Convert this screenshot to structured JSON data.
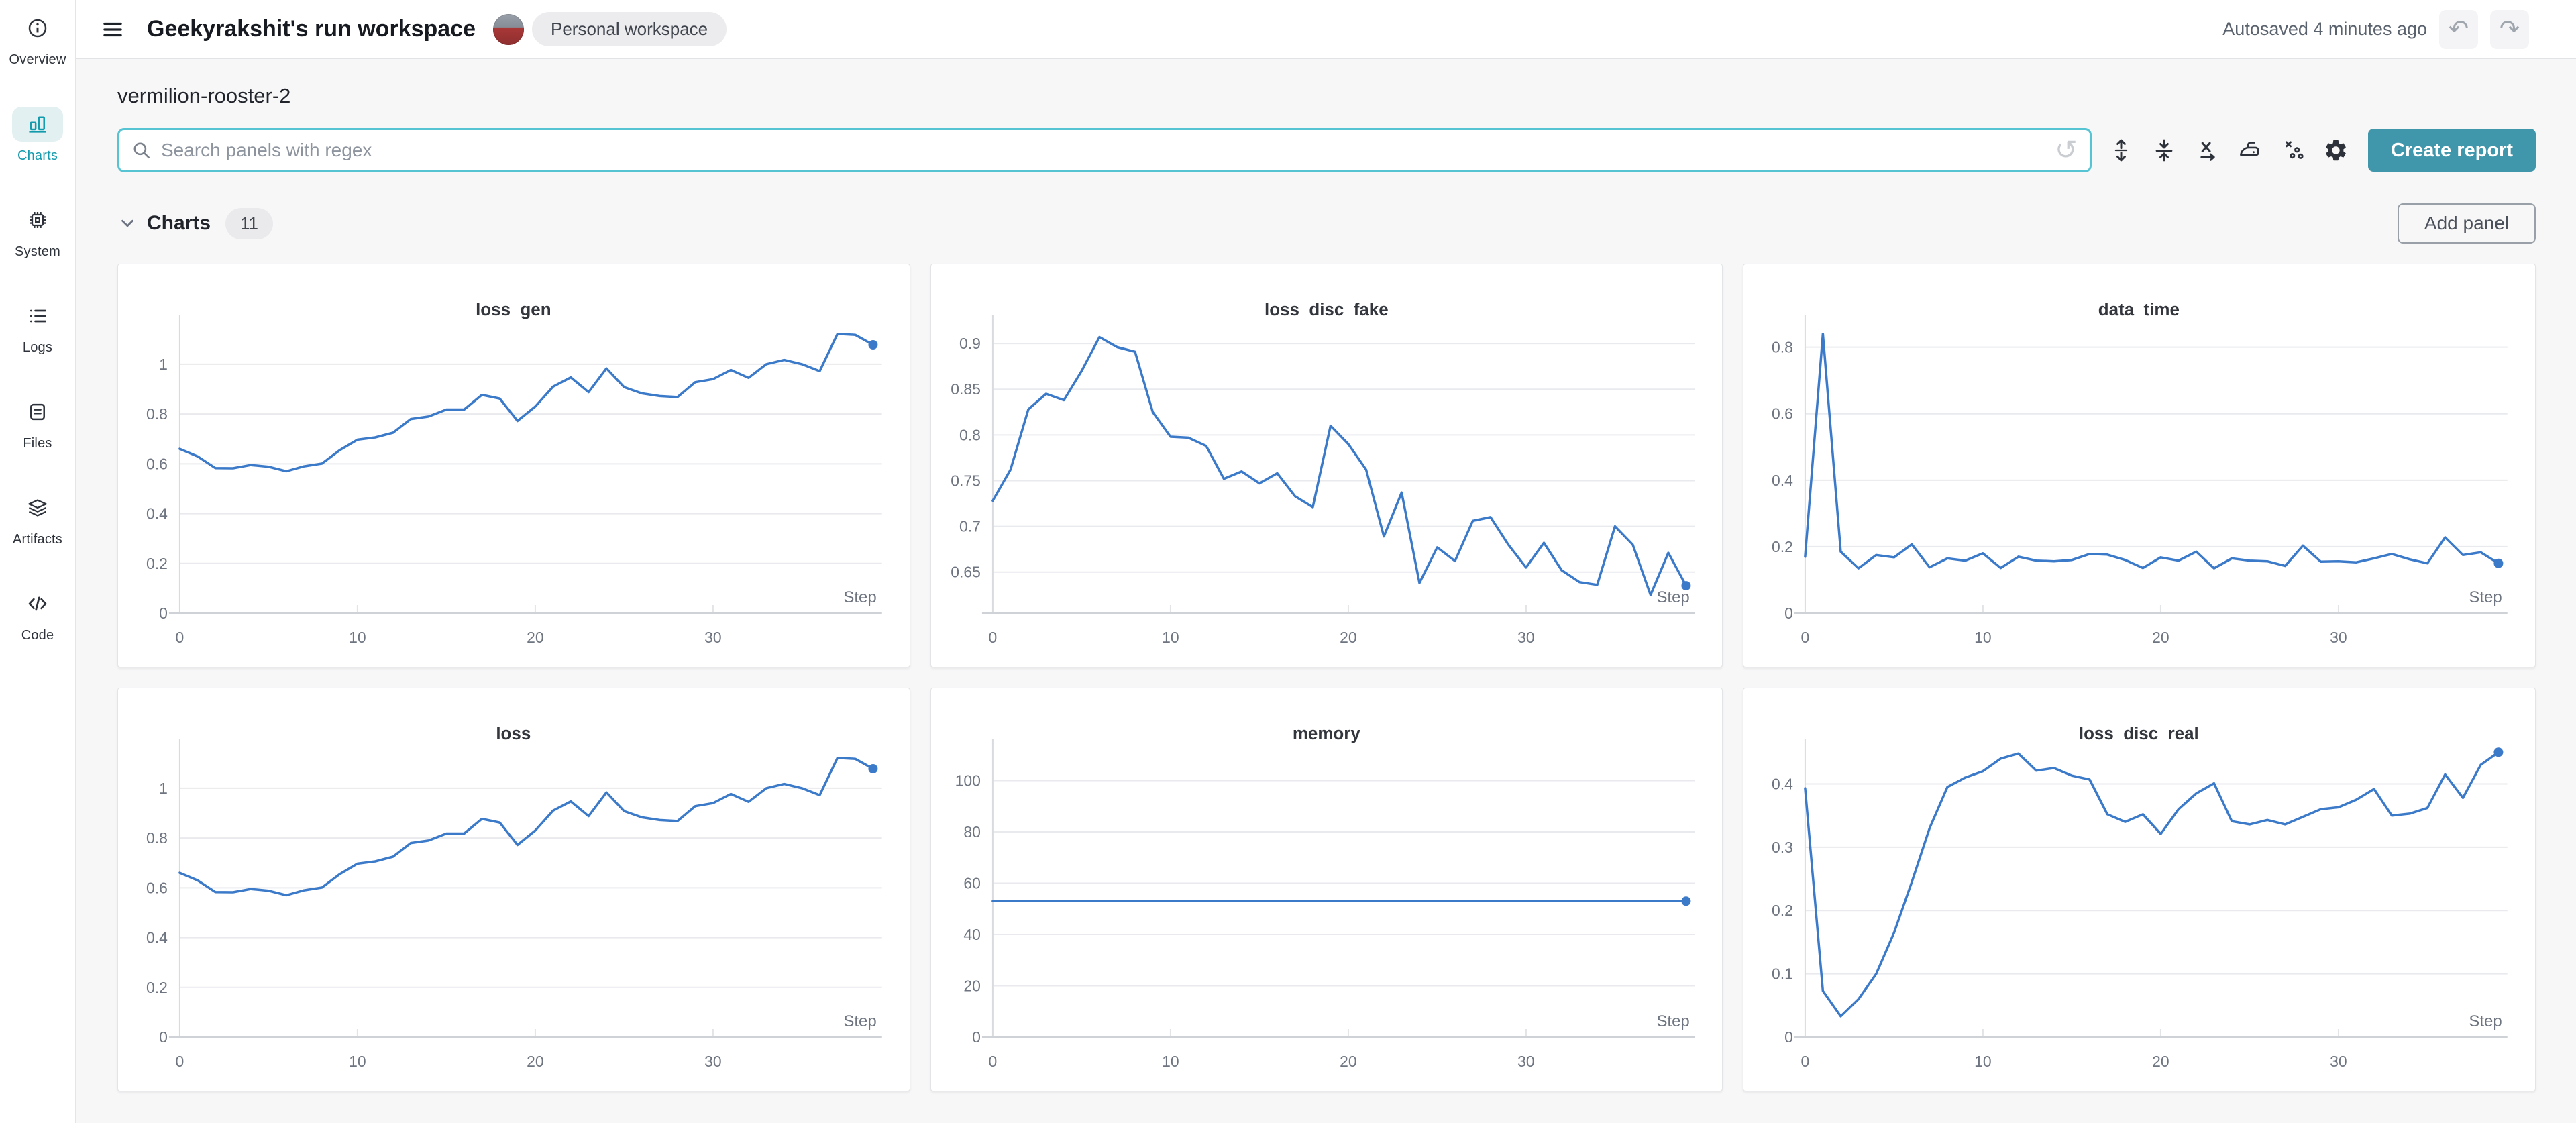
{
  "theme": {
    "accent_teal": "#129aad",
    "button_teal": "#4096aa",
    "search_border": "#56c4d2",
    "line_blue": "#3b79c9",
    "page_bg": "#f7f7f8",
    "card_border": "#e3e4e6",
    "sidebar_active_bg": "#e2f0f2"
  },
  "header": {
    "menu_icon": "hamburger-icon",
    "title": "Geekyrakshit's run workspace",
    "workspace_badge": "Personal workspace",
    "autosave_status": "Autosaved 4 minutes ago",
    "undo_icon": "undo-icon",
    "redo_icon": "redo-icon"
  },
  "sidebar": {
    "items": [
      {
        "label": "Overview",
        "icon": "info-icon",
        "active": false
      },
      {
        "label": "Charts",
        "icon": "bar-chart-icon",
        "active": true
      },
      {
        "label": "System",
        "icon": "cpu-icon",
        "active": false
      },
      {
        "label": "Logs",
        "icon": "list-icon",
        "active": false
      },
      {
        "label": "Files",
        "icon": "file-icon",
        "active": false
      },
      {
        "label": "Artifacts",
        "icon": "layers-icon",
        "active": false
      },
      {
        "label": "Code",
        "icon": "code-icon",
        "active": false
      }
    ]
  },
  "main": {
    "run_name": "vermilion-rooster-2",
    "search": {
      "placeholder": "Search panels with regex",
      "icon": "search-icon",
      "history_icon": "history-icon"
    },
    "toolbar": [
      {
        "icon": "expand-vertical-icon"
      },
      {
        "icon": "collapse-vertical-icon"
      },
      {
        "icon": "x-axis-icon"
      },
      {
        "icon": "smoothing-icon"
      },
      {
        "icon": "outliers-icon"
      },
      {
        "icon": "gear-icon"
      }
    ],
    "create_report_label": "Create report",
    "section": {
      "chevron_icon": "chevron-down-icon",
      "title": "Charts",
      "count": "11",
      "add_panel_label": "Add panel"
    }
  },
  "chart_data": [
    {
      "type": "line",
      "title": "loss_gen",
      "xlabel": "Step",
      "x_range": [
        0,
        39
      ],
      "x_ticks": [
        0,
        10,
        20,
        30
      ],
      "y_ticks": [
        0,
        0.2,
        0.4,
        0.6,
        0.8,
        1
      ],
      "ylim": [
        0,
        1.175
      ],
      "grid": true,
      "legend": false,
      "values": [
        0.66,
        0.63,
        0.583,
        0.582,
        0.595,
        0.588,
        0.57,
        0.59,
        0.601,
        0.655,
        0.697,
        0.706,
        0.725,
        0.78,
        0.79,
        0.818,
        0.818,
        0.877,
        0.862,
        0.772,
        0.83,
        0.91,
        0.947,
        0.888,
        0.983,
        0.908,
        0.883,
        0.872,
        0.868,
        0.928,
        0.94,
        0.977,
        0.945,
        1.0,
        1.017,
        1.0,
        0.972,
        1.122,
        1.118,
        1.078
      ]
    },
    {
      "type": "line",
      "title": "loss_disc_fake",
      "xlabel": "Step",
      "x_range": [
        0,
        39
      ],
      "x_ticks": [
        0,
        10,
        20,
        30
      ],
      "y_ticks": [
        0.65,
        0.7,
        0.75,
        0.8,
        0.85,
        0.9
      ],
      "ylim": [
        0.605,
        0.925
      ],
      "grid": true,
      "legend": false,
      "values": [
        0.728,
        0.762,
        0.828,
        0.845,
        0.838,
        0.87,
        0.907,
        0.896,
        0.891,
        0.825,
        0.798,
        0.797,
        0.788,
        0.752,
        0.76,
        0.747,
        0.758,
        0.733,
        0.721,
        0.81,
        0.79,
        0.762,
        0.689,
        0.737,
        0.638,
        0.677,
        0.662,
        0.706,
        0.71,
        0.68,
        0.655,
        0.682,
        0.652,
        0.639,
        0.636,
        0.7,
        0.68,
        0.625,
        0.671,
        0.635
      ]
    },
    {
      "type": "line",
      "title": "data_time",
      "xlabel": "Step",
      "x_range": [
        0,
        39
      ],
      "x_ticks": [
        0,
        10,
        20,
        30
      ],
      "y_ticks": [
        0,
        0.2,
        0.4,
        0.6,
        0.8
      ],
      "ylim": [
        0,
        0.88
      ],
      "grid": true,
      "legend": false,
      "values": [
        0.17,
        0.84,
        0.185,
        0.135,
        0.175,
        0.168,
        0.207,
        0.138,
        0.165,
        0.158,
        0.18,
        0.136,
        0.17,
        0.158,
        0.156,
        0.16,
        0.178,
        0.176,
        0.16,
        0.136,
        0.168,
        0.158,
        0.185,
        0.135,
        0.165,
        0.158,
        0.156,
        0.142,
        0.203,
        0.155,
        0.156,
        0.153,
        0.165,
        0.178,
        0.162,
        0.15,
        0.228,
        0.175,
        0.183,
        0.15
      ]
    },
    {
      "type": "line",
      "title": "loss",
      "xlabel": "Step",
      "x_range": [
        0,
        39
      ],
      "x_ticks": [
        0,
        10,
        20,
        30
      ],
      "y_ticks": [
        0,
        0.2,
        0.4,
        0.6,
        0.8,
        1
      ],
      "ylim": [
        0,
        1.175
      ],
      "grid": true,
      "legend": false,
      "values": [
        0.66,
        0.63,
        0.583,
        0.582,
        0.595,
        0.588,
        0.57,
        0.59,
        0.601,
        0.655,
        0.697,
        0.706,
        0.725,
        0.78,
        0.79,
        0.818,
        0.818,
        0.877,
        0.862,
        0.772,
        0.83,
        0.91,
        0.947,
        0.888,
        0.983,
        0.908,
        0.883,
        0.872,
        0.868,
        0.928,
        0.94,
        0.977,
        0.945,
        1.0,
        1.017,
        1.0,
        0.972,
        1.122,
        1.118,
        1.078
      ]
    },
    {
      "type": "line",
      "title": "memory",
      "xlabel": "Step",
      "x_range": [
        0,
        39
      ],
      "x_ticks": [
        0,
        10,
        20,
        30
      ],
      "y_ticks": [
        0,
        20,
        40,
        60,
        80,
        100
      ],
      "ylim": [
        0,
        114
      ],
      "grid": true,
      "legend": false,
      "values": [
        53,
        53,
        53,
        53,
        53,
        53,
        53,
        53,
        53,
        53,
        53,
        53,
        53,
        53,
        53,
        53,
        53,
        53,
        53,
        53,
        53,
        53,
        53,
        53,
        53,
        53,
        53,
        53,
        53,
        53,
        53,
        53,
        53,
        53,
        53,
        53,
        53,
        53,
        53,
        53
      ]
    },
    {
      "type": "line",
      "title": "loss_disc_real",
      "xlabel": "Step",
      "x_range": [
        0,
        39
      ],
      "x_ticks": [
        0,
        10,
        20,
        30
      ],
      "y_ticks": [
        0,
        0.1,
        0.2,
        0.3,
        0.4
      ],
      "ylim": [
        0,
        0.462
      ],
      "grid": true,
      "legend": false,
      "values": [
        0.393,
        0.073,
        0.033,
        0.06,
        0.1,
        0.165,
        0.245,
        0.33,
        0.395,
        0.41,
        0.42,
        0.44,
        0.448,
        0.421,
        0.425,
        0.413,
        0.407,
        0.352,
        0.34,
        0.352,
        0.321,
        0.36,
        0.385,
        0.401,
        0.341,
        0.336,
        0.343,
        0.336,
        0.348,
        0.36,
        0.363,
        0.375,
        0.392,
        0.35,
        0.353,
        0.362,
        0.415,
        0.378,
        0.43,
        0.45
      ]
    }
  ]
}
